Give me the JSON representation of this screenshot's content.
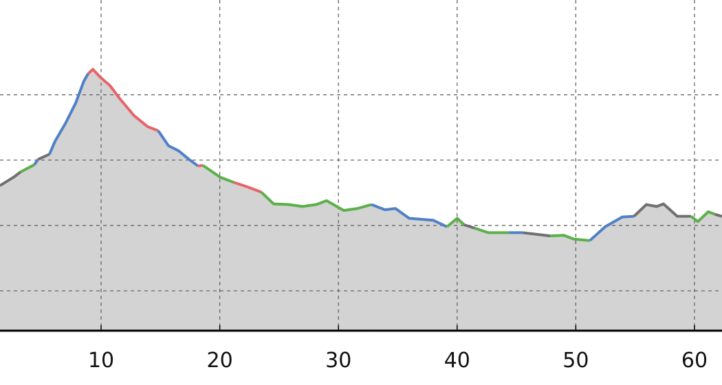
{
  "chart_data": {
    "type": "area_line",
    "xlim": [
      1.48,
      62.32
    ],
    "ylim": [
      0.39,
      5.45
    ],
    "xticks": [
      10,
      20,
      30,
      40,
      50,
      60
    ],
    "yticks": [
      1,
      2,
      3,
      4
    ],
    "show_ytick_labels": false,
    "grid": true,
    "fill_color": "#d3d3d3",
    "segments": [
      {
        "color": "#707070",
        "x": [
          1.48,
          2.64,
          3.22
        ],
        "values": [
          2.61,
          2.74,
          2.82
        ]
      },
      {
        "color": "#5cb04a",
        "x": [
          3.22,
          4.38
        ],
        "values": [
          2.82,
          2.93
        ]
      },
      {
        "color": "#5080c8",
        "x": [
          4.38,
          4.67
        ],
        "values": [
          2.93,
          3.01
        ]
      },
      {
        "color": "#707070",
        "x": [
          4.67,
          5.65
        ],
        "values": [
          3.01,
          3.09
        ]
      },
      {
        "color": "#5080c8",
        "x": [
          5.65,
          6.12,
          6.99,
          7.85,
          8.55,
          8.9
        ],
        "values": [
          3.09,
          3.29,
          3.56,
          3.87,
          4.21,
          4.32
        ]
      },
      {
        "color": "#e8636a",
        "x": [
          8.9,
          9.3,
          9.92,
          10.75,
          11.62,
          12.78,
          13.94,
          14.81
        ],
        "values": [
          4.32,
          4.39,
          4.27,
          4.14,
          3.93,
          3.68,
          3.51,
          3.45
        ]
      },
      {
        "color": "#5080c8",
        "x": [
          14.81,
          15.68,
          16.55,
          17.42,
          18.17
        ],
        "values": [
          3.45,
          3.22,
          3.14,
          3.01,
          2.91
        ]
      },
      {
        "color": "#e8636a",
        "x": [
          18.17,
          18.58
        ],
        "values": [
          2.91,
          2.92
        ]
      },
      {
        "color": "#5cb04a",
        "x": [
          18.58,
          20.02,
          21.18
        ],
        "values": [
          2.92,
          2.74,
          2.66
        ]
      },
      {
        "color": "#e8636a",
        "x": [
          21.18,
          22.34,
          23.5
        ],
        "values": [
          2.66,
          2.59,
          2.51
        ]
      },
      {
        "color": "#5cb04a",
        "x": [
          23.5,
          24.54,
          25.82,
          26.98,
          28.13,
          29.0,
          29.87,
          30.45,
          31.61,
          32.77
        ],
        "values": [
          2.51,
          2.33,
          2.32,
          2.29,
          2.32,
          2.38,
          2.29,
          2.23,
          2.26,
          2.32
        ]
      },
      {
        "color": "#5080c8",
        "x": [
          32.77,
          33.93,
          34.8,
          35.96,
          37.98,
          39.14
        ],
        "values": [
          2.32,
          2.24,
          2.26,
          2.11,
          2.08,
          1.98
        ]
      },
      {
        "color": "#5cb04a",
        "x": [
          39.14,
          40.01,
          40.59
        ],
        "values": [
          1.98,
          2.11,
          2.01
        ]
      },
      {
        "color": "#707070",
        "x": [
          40.59,
          41.46
        ],
        "values": [
          2.01,
          1.96
        ]
      },
      {
        "color": "#5cb04a",
        "x": [
          41.46,
          42.62,
          44.36
        ],
        "values": [
          1.96,
          1.89,
          1.89
        ]
      },
      {
        "color": "#5080c8",
        "x": [
          44.36,
          45.52
        ],
        "values": [
          1.89,
          1.89
        ]
      },
      {
        "color": "#707070",
        "x": [
          45.52,
          47.83
        ],
        "values": [
          1.89,
          1.84
        ]
      },
      {
        "color": "#5cb04a",
        "x": [
          47.83,
          48.99,
          49.86,
          51.19
        ],
        "values": [
          1.84,
          1.85,
          1.79,
          1.77
        ]
      },
      {
        "color": "#5080c8",
        "x": [
          51.19,
          52.47,
          53.92,
          54.9
        ],
        "values": [
          1.77,
          1.98,
          2.13,
          2.14
        ]
      },
      {
        "color": "#707070",
        "x": [
          54.9,
          55.94,
          56.81,
          57.39,
          58.55,
          59.71
        ],
        "values": [
          2.14,
          2.32,
          2.29,
          2.33,
          2.14,
          2.14
        ]
      },
      {
        "color": "#5cb04a",
        "x": [
          59.71,
          60.29,
          61.16,
          61.74
        ],
        "values": [
          2.14,
          2.06,
          2.21,
          2.17
        ]
      },
      {
        "color": "#707070",
        "x": [
          61.74,
          62.32
        ],
        "values": [
          2.17,
          2.14
        ]
      }
    ]
  }
}
